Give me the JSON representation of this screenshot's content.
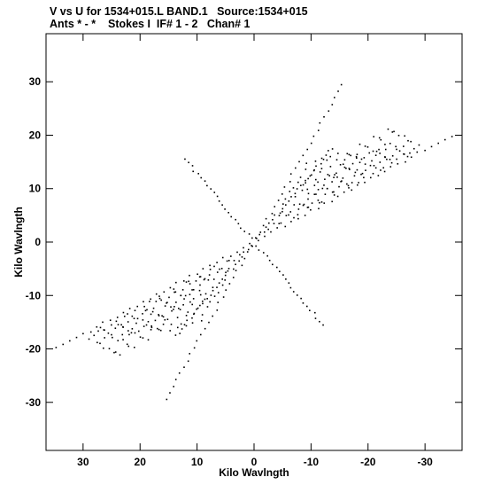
{
  "chart_data": {
    "type": "scatter",
    "title": "V vs U for 1534+015.L BAND.1   Source:1534+015",
    "subtitle": "Ants * - *    Stokes I  IF# 1 - 2   Chan# 1",
    "xlabel": "Kilo Wavlngth",
    "ylabel": "Kilo Wavlngth",
    "xlim": [
      36.5,
      -36.5
    ],
    "ylim": [
      -39,
      39
    ],
    "x_ticks": [
      30,
      20,
      10,
      0,
      -10,
      -20,
      -30
    ],
    "y_ticks": [
      30,
      20,
      10,
      0,
      -10,
      -20,
      -30
    ],
    "x_tick_labels": [
      "30",
      "20",
      "10",
      "0",
      "-10",
      "-20",
      "-30"
    ],
    "y_tick_labels": [
      "30",
      "20",
      "10",
      "0",
      "-10",
      "-20",
      "-30"
    ],
    "grid": false,
    "marker_color": "#000000",
    "sampling": {
      "description": "uv-coverage point cloud; points are symmetric (u,v) and (-u,-v)",
      "arms": [
        {
          "angle_deg": 150,
          "length": 40
        },
        {
          "angle_deg": 118,
          "length": 34
        },
        {
          "angle_deg": 52,
          "length": 20
        },
        {
          "angle_deg": 128,
          "length": 22
        }
      ]
    }
  }
}
